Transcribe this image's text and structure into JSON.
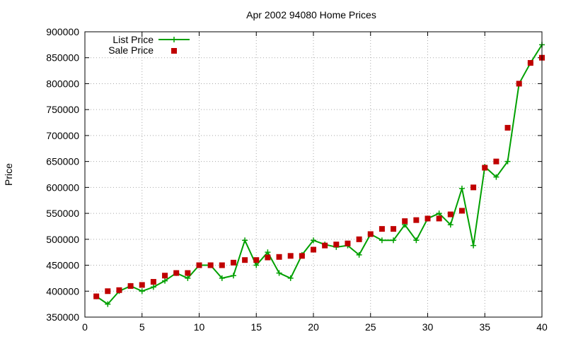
{
  "chart_data": {
    "type": "line",
    "title": "Apr 2002 94080 Home Prices",
    "xlabel": "",
    "ylabel": "Price",
    "xlim": [
      0,
      40
    ],
    "ylim": [
      350000,
      900000
    ],
    "x_ticks": [
      0,
      5,
      10,
      15,
      20,
      25,
      30,
      35,
      40
    ],
    "y_ticks": [
      350000,
      400000,
      450000,
      500000,
      550000,
      600000,
      650000,
      700000,
      750000,
      800000,
      850000,
      900000
    ],
    "x_tick_labels": [
      "0",
      "5",
      "10",
      "15",
      "20",
      "25",
      "30",
      "35",
      "40"
    ],
    "y_tick_labels": [
      "350000",
      "400000",
      "450000",
      "500000",
      "550000",
      "600000",
      "650000",
      "700000",
      "750000",
      "800000",
      "850000",
      "900000"
    ],
    "grid": true,
    "legend_position": "top-left",
    "x": [
      1,
      2,
      3,
      4,
      5,
      6,
      7,
      8,
      9,
      10,
      11,
      12,
      13,
      14,
      15,
      16,
      17,
      18,
      19,
      20,
      21,
      22,
      23,
      24,
      25,
      26,
      27,
      28,
      29,
      30,
      31,
      32,
      33,
      34,
      35,
      36,
      37,
      38,
      39,
      40
    ],
    "series": [
      {
        "name": "List Price",
        "style": "linespoints",
        "marker": "plus",
        "color": "#00a000",
        "values": [
          390000,
          375000,
          400000,
          410000,
          400000,
          408000,
          420000,
          435000,
          425000,
          450000,
          450000,
          425000,
          430000,
          498000,
          450000,
          475000,
          435000,
          425000,
          470000,
          498000,
          490000,
          485000,
          488000,
          470000,
          510000,
          498000,
          498000,
          528000,
          498000,
          540000,
          550000,
          528000,
          598000,
          488000,
          640000,
          620000,
          650000,
          800000,
          840000,
          875000
        ]
      },
      {
        "name": "Sale Price",
        "style": "points",
        "marker": "square",
        "color": "#c00000",
        "values": [
          390000,
          400000,
          402000,
          410000,
          412000,
          418000,
          430000,
          435000,
          435000,
          450000,
          450000,
          450000,
          455000,
          460000,
          460000,
          465000,
          466000,
          468000,
          468000,
          480000,
          488000,
          490000,
          492000,
          500000,
          510000,
          520000,
          520000,
          535000,
          537000,
          540000,
          540000,
          548000,
          555000,
          600000,
          638000,
          650000,
          715000,
          800000,
          840000,
          850000
        ]
      }
    ]
  }
}
